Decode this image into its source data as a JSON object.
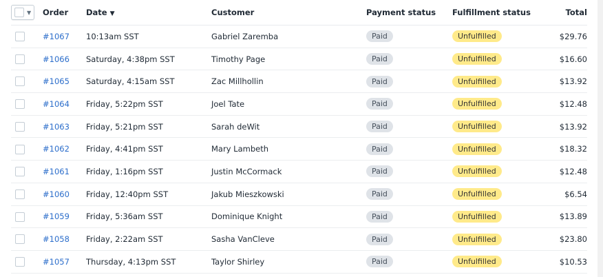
{
  "columns": {
    "order": "Order",
    "date": "Date",
    "customer": "Customer",
    "payment": "Payment status",
    "fulfillment": "Fulfillment status",
    "total": "Total"
  },
  "sort_icon": "caret-down-icon",
  "orders": [
    {
      "id": "#1067",
      "date": "10:13am SST",
      "customer": "Gabriel Zaremba",
      "payment": "Paid",
      "fulfillment": "Unfulfilled",
      "total": "$29.76"
    },
    {
      "id": "#1066",
      "date": "Saturday, 4:38pm SST",
      "customer": "Timothy Page",
      "payment": "Paid",
      "fulfillment": "Unfulfilled",
      "total": "$16.60"
    },
    {
      "id": "#1065",
      "date": "Saturday, 4:15am SST",
      "customer": "Zac Millhollin",
      "payment": "Paid",
      "fulfillment": "Unfulfilled",
      "total": "$13.92"
    },
    {
      "id": "#1064",
      "date": "Friday, 5:22pm SST",
      "customer": "Joel Tate",
      "payment": "Paid",
      "fulfillment": "Unfulfilled",
      "total": "$12.48"
    },
    {
      "id": "#1063",
      "date": "Friday, 5:21pm SST",
      "customer": "Sarah deWit",
      "payment": "Paid",
      "fulfillment": "Unfulfilled",
      "total": "$13.92"
    },
    {
      "id": "#1062",
      "date": "Friday, 4:41pm SST",
      "customer": "Mary Lambeth",
      "payment": "Paid",
      "fulfillment": "Unfulfilled",
      "total": "$18.32"
    },
    {
      "id": "#1061",
      "date": "Friday, 1:16pm SST",
      "customer": "Justin McCormack",
      "payment": "Paid",
      "fulfillment": "Unfulfilled",
      "total": "$12.48"
    },
    {
      "id": "#1060",
      "date": "Friday, 12:40pm SST",
      "customer": "Jakub Mieszkowski",
      "payment": "Paid",
      "fulfillment": "Unfulfilled",
      "total": "$6.54"
    },
    {
      "id": "#1059",
      "date": "Friday, 5:36am SST",
      "customer": "Dominique Knight",
      "payment": "Paid",
      "fulfillment": "Unfulfilled",
      "total": "$13.89"
    },
    {
      "id": "#1058",
      "date": "Friday, 2:22am SST",
      "customer": "Sasha VanCleve",
      "payment": "Paid",
      "fulfillment": "Unfulfilled",
      "total": "$23.80"
    },
    {
      "id": "#1057",
      "date": "Thursday, 4:13pm SST",
      "customer": "Taylor Shirley",
      "payment": "Paid",
      "fulfillment": "Unfulfilled",
      "total": "$10.53"
    }
  ]
}
